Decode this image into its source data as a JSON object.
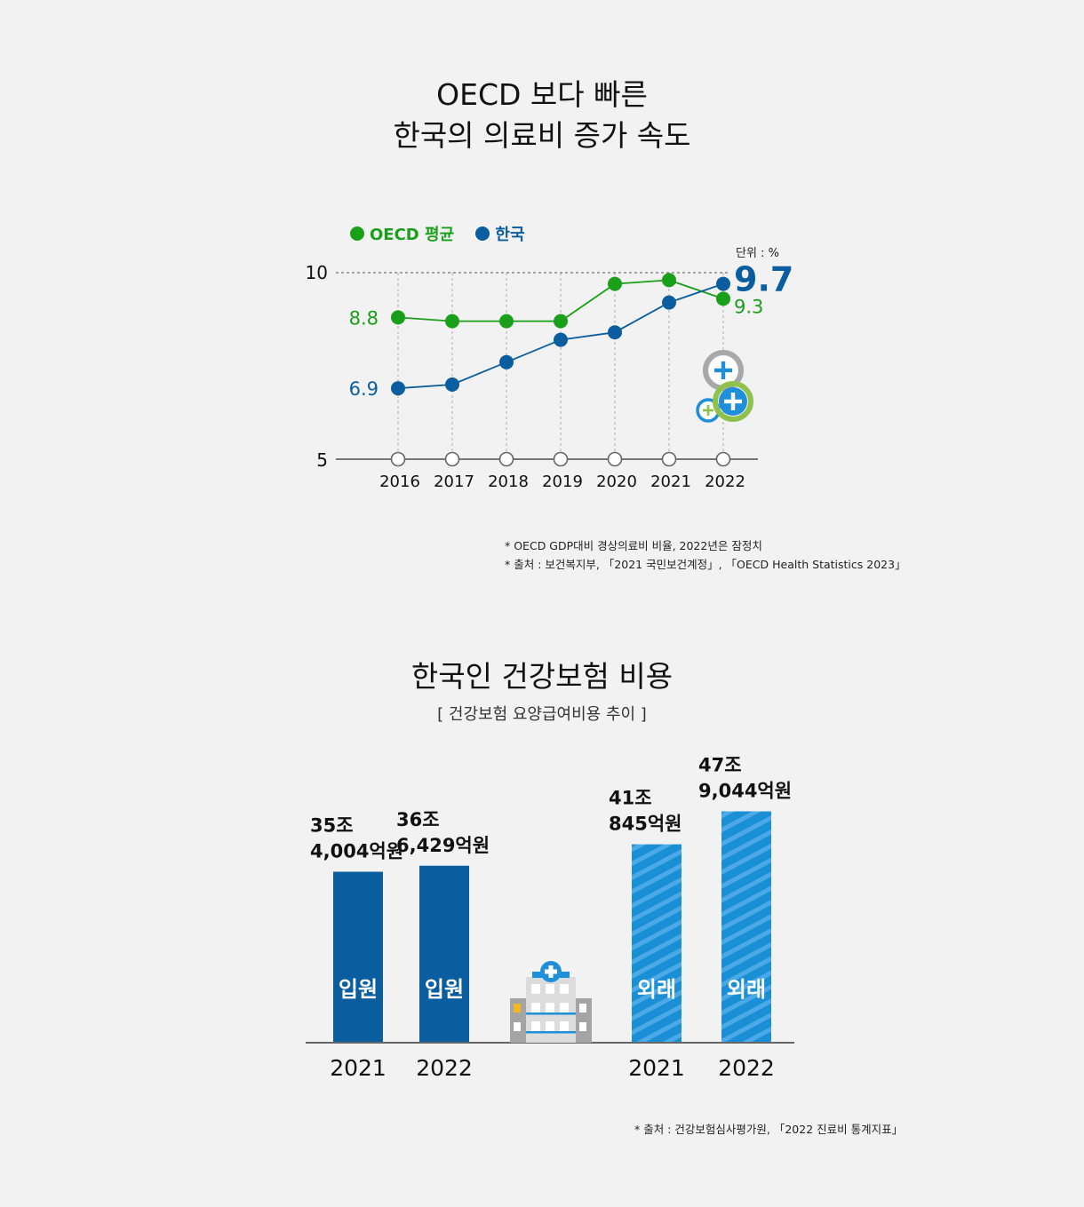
{
  "chart1": {
    "title_line1": "OECD 보다 빠른",
    "title_line2": "한국의 의료비 증가 속도",
    "unit": "단위 : %",
    "legend": [
      {
        "label": "OECD 평균",
        "color": "#1a9f1a"
      },
      {
        "label": "한국",
        "color": "#0a5ea0"
      }
    ],
    "notes": [
      "* OECD GDP대비 경상의료비 비율, 2022년은 잠정치",
      "* 출처 : 보건복지부, 「2021 국민보건계정」, 「OECD Health Statistics 2023」"
    ]
  },
  "chart2": {
    "title": "한국인 건강보험 비용",
    "subtitle": "[ 건강보험 요양급여비용 추이 ]",
    "note": "* 출처 : 건강보험심사평가원, 「2022 진료비 통계지표」"
  },
  "chart_data": [
    {
      "type": "line",
      "title": "OECD 보다 빠른 한국의 의료비 증가 속도",
      "x": [
        "2016",
        "2017",
        "2018",
        "2019",
        "2020",
        "2021",
        "2022"
      ],
      "ylim": [
        5,
        10
      ],
      "yticks": [
        "5",
        "10"
      ],
      "grid": true,
      "legend_position": "top-left",
      "series": [
        {
          "name": "OECD 평균",
          "color": "#1a9f1a",
          "values": [
            8.8,
            8.7,
            8.7,
            8.7,
            9.7,
            9.8,
            9.3
          ],
          "labels": [
            {
              "index": 0,
              "text": "8.8"
            },
            {
              "index": 6,
              "text": "9.3"
            }
          ]
        },
        {
          "name": "한국",
          "color": "#0a5ea0",
          "values": [
            6.9,
            7.0,
            7.6,
            8.2,
            8.4,
            9.2,
            9.7
          ],
          "labels": [
            {
              "index": 0,
              "text": "6.9"
            },
            {
              "index": 6,
              "text": "9.7"
            }
          ]
        }
      ]
    },
    {
      "type": "bar",
      "title": "한국인 건강보험 비용",
      "categories": [
        "2021",
        "2022",
        "2021",
        "2022"
      ],
      "groups": [
        "입원",
        "입원",
        "외래",
        "외래"
      ],
      "values": [
        35.4004,
        36.6429,
        41.0845,
        47.9044
      ],
      "unit": "조원",
      "colors": [
        "#0a5ea0",
        "#0a5ea0",
        "#1a8fd6",
        "#1a8fd6"
      ],
      "value_labels": [
        [
          "35조",
          "4,004억원"
        ],
        [
          "36조",
          "6,429억원"
        ],
        [
          "41조",
          "845억원"
        ],
        [
          "47조",
          "9,044억원"
        ]
      ]
    }
  ]
}
